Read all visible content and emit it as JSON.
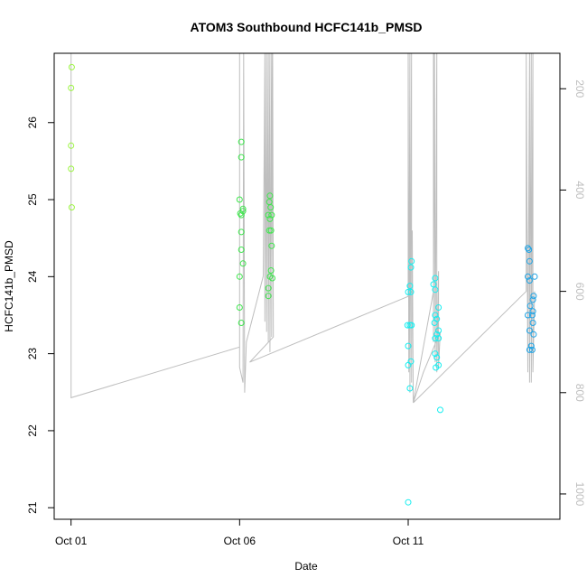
{
  "chart_data": {
    "type": "scatter",
    "title": "ATOM3 Southbound HCFC141b_PMSD",
    "xlabel": "Date",
    "ylabel": "HCFC141b_PMSD",
    "x_unit": "days since Oct 01",
    "xlim": [
      -0.5,
      14.5
    ],
    "ylim": [
      20.85,
      26.9
    ],
    "y_ticks": [
      21,
      22,
      23,
      24,
      25,
      26
    ],
    "x_ticks": [
      {
        "x": 0,
        "label": "Oct 01"
      },
      {
        "x": 5,
        "label": "Oct 06"
      },
      {
        "x": 10,
        "label": "Oct 11"
      }
    ],
    "y2_lim": [
      1050,
      130
    ],
    "y2_ticks": [
      200,
      400,
      600,
      800,
      1000
    ],
    "grid": false,
    "legend": "none",
    "colors": {
      "green_light": "#9cf542",
      "green": "#3ee64d",
      "green_cyan": "#27ec8b",
      "cyan": "#16eef0",
      "blue_cyan": "#1ea4e6",
      "profile_line": "#bebebe",
      "axis": "#000000"
    },
    "series": [
      {
        "color": "#9cf542",
        "points": [
          [
            0.02,
            26.72
          ],
          [
            0.0,
            26.45
          ],
          [
            0.0,
            25.7
          ],
          [
            0.0,
            25.4
          ],
          [
            0.02,
            24.9
          ]
        ]
      },
      {
        "color": "#3ee64d",
        "points": [
          [
            5.05,
            25.75
          ],
          [
            5.05,
            25.55
          ],
          [
            5.0,
            25.0
          ],
          [
            5.1,
            24.88
          ],
          [
            5.02,
            24.82
          ],
          [
            5.05,
            24.8
          ],
          [
            5.1,
            24.85
          ],
          [
            5.05,
            24.58
          ],
          [
            5.05,
            24.35
          ],
          [
            5.1,
            24.17
          ],
          [
            5.0,
            24.0
          ],
          [
            5.0,
            23.6
          ],
          [
            5.05,
            23.4
          ],
          [
            5.9,
            25.05
          ],
          [
            5.88,
            24.97
          ],
          [
            5.92,
            24.9
          ],
          [
            5.85,
            24.8
          ],
          [
            5.9,
            24.75
          ],
          [
            5.95,
            24.8
          ],
          [
            5.88,
            24.6
          ],
          [
            5.93,
            24.6
          ],
          [
            5.95,
            24.4
          ],
          [
            5.93,
            24.08
          ],
          [
            5.9,
            24.0
          ],
          [
            5.97,
            23.98
          ],
          [
            5.85,
            23.85
          ],
          [
            5.85,
            23.75
          ]
        ]
      },
      {
        "color": "#16eef0",
        "points": [
          [
            10.1,
            24.2
          ],
          [
            10.08,
            24.12
          ],
          [
            10.05,
            23.88
          ],
          [
            10.0,
            23.8
          ],
          [
            10.08,
            23.8
          ],
          [
            10.05,
            23.37
          ],
          [
            10.1,
            23.37
          ],
          [
            9.98,
            23.37
          ],
          [
            10.0,
            23.1
          ],
          [
            10.08,
            22.9
          ],
          [
            10.0,
            22.85
          ],
          [
            10.05,
            22.55
          ],
          [
            10.0,
            21.07
          ],
          [
            10.8,
            23.98
          ],
          [
            10.75,
            23.9
          ],
          [
            10.8,
            23.83
          ],
          [
            10.9,
            23.6
          ],
          [
            10.8,
            23.5
          ],
          [
            10.85,
            23.45
          ],
          [
            10.78,
            23.4
          ],
          [
            10.9,
            23.3
          ],
          [
            10.85,
            23.25
          ],
          [
            10.8,
            23.2
          ],
          [
            10.9,
            23.2
          ],
          [
            10.8,
            23.0
          ],
          [
            10.85,
            22.95
          ],
          [
            10.9,
            22.85
          ],
          [
            10.82,
            22.82
          ],
          [
            10.95,
            22.27
          ]
        ]
      },
      {
        "color": "#1ea4e6",
        "points": [
          [
            13.55,
            24.37
          ],
          [
            13.58,
            24.35
          ],
          [
            13.6,
            24.2
          ],
          [
            13.55,
            24.0
          ],
          [
            13.6,
            23.95
          ],
          [
            13.75,
            24.0
          ],
          [
            13.72,
            23.75
          ],
          [
            13.7,
            23.7
          ],
          [
            13.62,
            23.62
          ],
          [
            13.7,
            23.55
          ],
          [
            13.55,
            23.5
          ],
          [
            13.68,
            23.5
          ],
          [
            13.7,
            23.4
          ],
          [
            13.6,
            23.3
          ],
          [
            13.72,
            23.25
          ],
          [
            13.65,
            23.1
          ],
          [
            13.6,
            23.05
          ],
          [
            13.68,
            23.05
          ]
        ]
      }
    ],
    "profile_line_y2": [
      [
        0.0,
        130
      ],
      [
        0.0,
        810
      ],
      [
        5.0,
        710
      ],
      [
        5.0,
        130
      ],
      [
        5.0,
        750
      ],
      [
        5.1,
        780
      ],
      [
        5.12,
        130
      ],
      [
        5.15,
        800
      ],
      [
        5.2,
        700
      ],
      [
        5.7,
        570
      ],
      [
        5.75,
        130
      ],
      [
        5.75,
        660
      ],
      [
        5.8,
        130
      ],
      [
        5.8,
        680
      ],
      [
        5.85,
        130
      ],
      [
        5.85,
        700
      ],
      [
        5.9,
        130
      ],
      [
        5.9,
        720
      ],
      [
        5.95,
        130
      ],
      [
        5.95,
        690
      ],
      [
        5.98,
        130
      ],
      [
        6.0,
        690
      ],
      [
        5.3,
        740
      ],
      [
        10.0,
        610
      ],
      [
        10.0,
        130
      ],
      [
        10.02,
        760
      ],
      [
        10.05,
        130
      ],
      [
        10.05,
        800
      ],
      [
        10.1,
        130
      ],
      [
        10.1,
        780
      ],
      [
        10.12,
        480
      ],
      [
        10.15,
        820
      ],
      [
        10.75,
        600
      ],
      [
        10.75,
        130
      ],
      [
        10.75,
        700
      ],
      [
        10.78,
        130
      ],
      [
        10.8,
        740
      ],
      [
        10.85,
        130
      ],
      [
        10.85,
        760
      ],
      [
        10.9,
        560
      ],
      [
        10.9,
        750
      ],
      [
        10.95,
        680
      ],
      [
        10.45,
        760
      ],
      [
        10.15,
        820
      ],
      [
        13.5,
        600
      ],
      [
        13.5,
        130
      ],
      [
        13.55,
        760
      ],
      [
        13.6,
        130
      ],
      [
        13.6,
        780
      ],
      [
        13.65,
        130
      ],
      [
        13.65,
        780
      ],
      [
        13.7,
        130
      ],
      [
        13.7,
        760
      ],
      [
        13.75,
        600
      ]
    ]
  }
}
